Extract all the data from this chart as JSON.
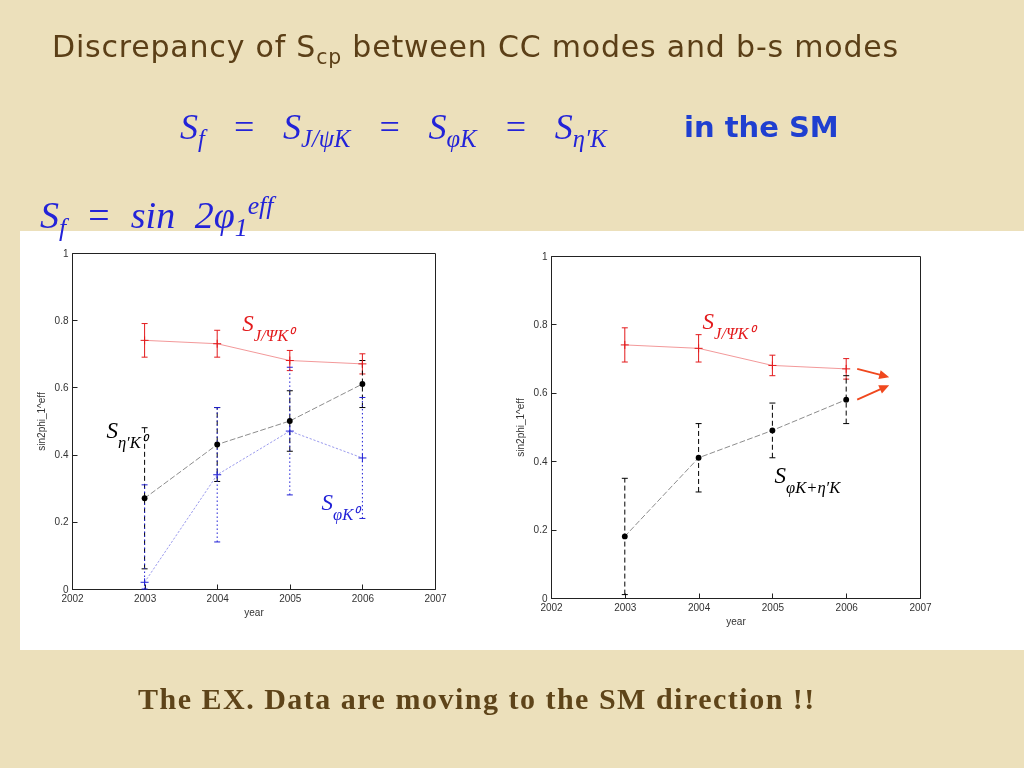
{
  "chart_data": [
    {
      "type": "line",
      "title": "Discrepancy of S$_{cp}$ between CC modes and b-s modes",
      "subtitle": "S$_{f}$ = S$_{J/ψK}$ = S$_{φK}$ = S$_{η′K}$",
      "annotations": [
        "in the SM",
        "S$_{f}$ = sin 2φ$_{1}$$^{eff}$"
      ],
      "xlabel": "year",
      "ylabel": "sin2phi_1^eff",
      "x": [
        2003,
        2004,
        2005,
        2006
      ],
      "xlim": [
        2002,
        2007
      ],
      "xticks": [
        2002,
        2003,
        2004,
        2005,
        2006,
        2007
      ],
      "ylim": [
        0,
        1
      ],
      "yticks": [
        0,
        0.2,
        0.4,
        0.6,
        0.8,
        1
      ],
      "series": [
        {
          "name": "S$_{J/ΨK⁰}$",
          "color": "#e31a1c",
          "values": [
            0.74,
            0.73,
            0.68,
            0.67
          ],
          "errors": [
            0.05,
            0.04,
            0.03,
            0.03
          ],
          "marker": "cross",
          "line_style": "solid"
        },
        {
          "name": "S$_{η′K⁰}$",
          "color": "#000000",
          "values": [
            0.27,
            0.43,
            0.5,
            0.61
          ],
          "errors": [
            0.21,
            0.11,
            0.09,
            0.07
          ],
          "marker": "circle",
          "line_style": "dashed"
        },
        {
          "name": "S$_{φK⁰}$",
          "color": "#1f1fd6",
          "values": [
            0.02,
            0.34,
            0.47,
            0.39
          ],
          "errors": [
            [
              0,
              0.31
            ],
            0.2,
            0.19,
            0.18
          ],
          "marker": "cross",
          "line_style": "dotted"
        }
      ]
    },
    {
      "type": "line",
      "annotations": [
        "The EX. Data are moving to the SM direction !!"
      ],
      "xlabel": "year",
      "ylabel": "sin2phi_1^eff",
      "x": [
        2003,
        2004,
        2005,
        2006
      ],
      "xlim": [
        2002,
        2007
      ],
      "xticks": [
        2002,
        2003,
        2004,
        2005,
        2006,
        2007
      ],
      "ylim": [
        0,
        1
      ],
      "yticks": [
        0,
        0.2,
        0.4,
        0.6,
        0.8,
        1
      ],
      "series": [
        {
          "name": "S$_{J/ΨK⁰}$",
          "color": "#e31a1c",
          "values": [
            0.74,
            0.73,
            0.68,
            0.67
          ],
          "errors": [
            0.05,
            0.04,
            0.03,
            0.03
          ],
          "marker": "cross",
          "line_style": "solid"
        },
        {
          "name": "S$_{φK+η′K}$",
          "color": "#000000",
          "values": [
            0.18,
            0.41,
            0.49,
            0.58
          ],
          "errors": [
            0.17,
            0.1,
            0.08,
            0.07
          ],
          "marker": "circle",
          "line_style": "dashed"
        }
      ]
    }
  ]
}
